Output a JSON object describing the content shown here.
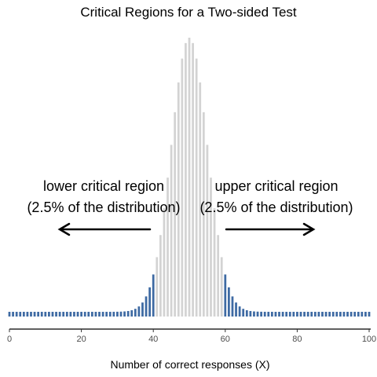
{
  "chart_data": {
    "type": "bar",
    "title": "Critical Regions for a Two-sided Test",
    "xlabel": "Number of correct responses (X)",
    "ylabel": "",
    "xlim": [
      0,
      100
    ],
    "xticks": [
      0,
      20,
      40,
      60,
      80,
      100
    ],
    "distribution": "binomial",
    "n": 100,
    "p": 0.5,
    "critical_lower_max": 40,
    "critical_upper_min": 60,
    "colors": {
      "critical": "#3e6aa3",
      "noncritical": "#d3d3d3"
    },
    "annotations": {
      "lower": [
        "lower critical region",
        "(2.5% of the distribution)"
      ],
      "upper": [
        "upper critical region",
        "(2.5% of the distribution)"
      ]
    }
  }
}
